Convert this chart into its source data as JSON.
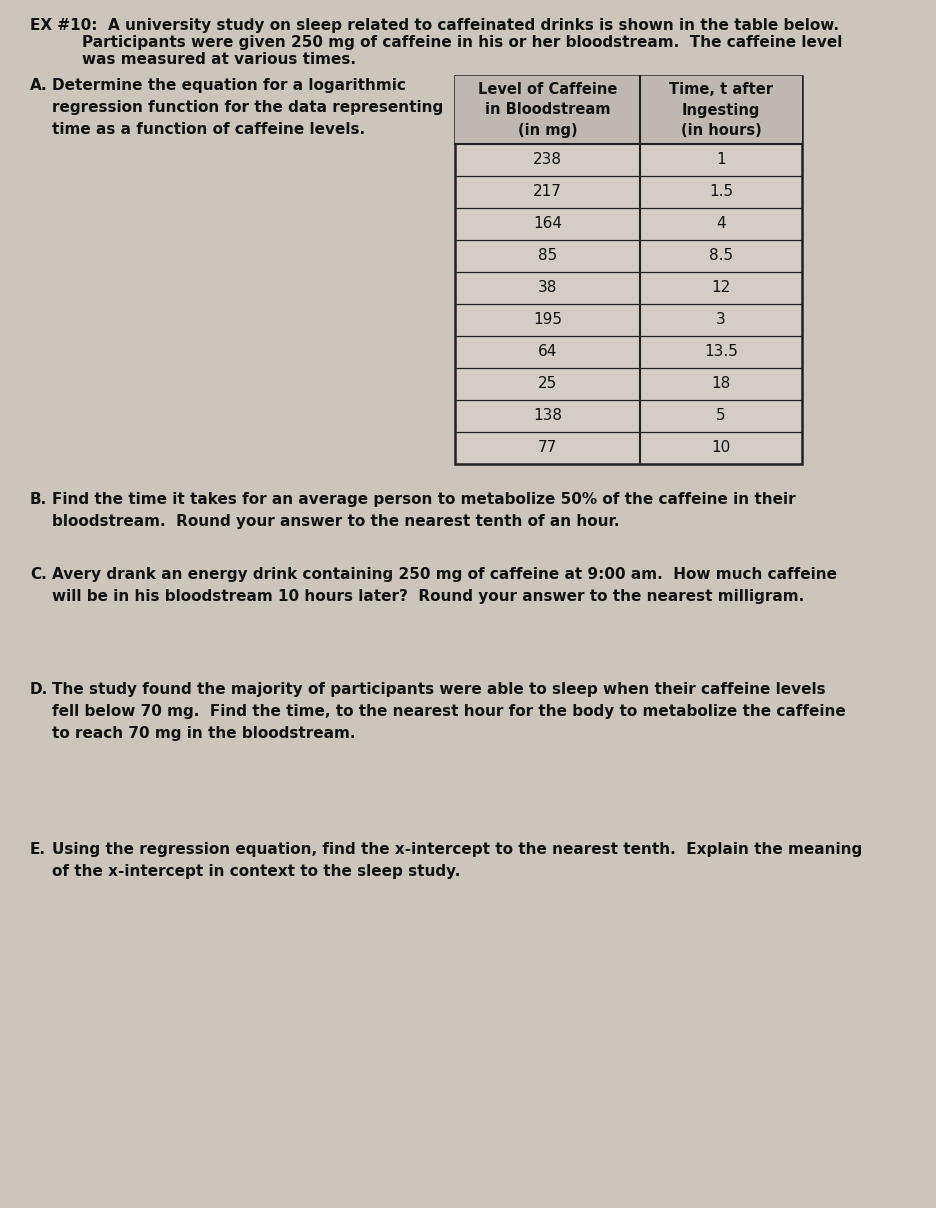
{
  "title_line1": "EX #10:  A university study on sleep related to caffeinated drinks is shown in the table below.",
  "title_line2": "Participants were given 250 mg of caffeine in his or her bloodstream.  The caffeine level",
  "title_line3": "was measured at various times.",
  "part_A_label": "A.",
  "part_A_text": "Determine the equation for a logarithmic\nregression function for the data representing\ntime as a function of caffeine levels.",
  "table_col1_header": "Level of Caffeine\nin Bloodstream\n(in mg)",
  "table_col2_header": "Time, t after\nIngesting\n(in hours)",
  "table_data": [
    [
      "238",
      "1"
    ],
    [
      "217",
      "1.5"
    ],
    [
      "164",
      "4"
    ],
    [
      "85",
      "8.5"
    ],
    [
      "38",
      "12"
    ],
    [
      "195",
      "3"
    ],
    [
      "64",
      "13.5"
    ],
    [
      "25",
      "18"
    ],
    [
      "138",
      "5"
    ],
    [
      "77",
      "10"
    ]
  ],
  "part_B_label": "B.",
  "part_B_text": "Find the time it takes for an average person to metabolize 50% of the caffeine in their\nbloodstream.  Round your answer to the nearest tenth of an hour.",
  "part_C_label": "C.",
  "part_C_text": "Avery drank an energy drink containing 250 mg of caffeine at 9:00 am.  How much caffeine\nwill be in his bloodstream 10 hours later?  Round your answer to the nearest milligram.",
  "part_D_label": "D.",
  "part_D_text": "The study found the majority of participants were able to sleep when their caffeine levels\nfell below 70 mg.  Find the time, to the nearest hour for the body to metabolize the caffeine\nto reach 70 mg in the bloodstream.",
  "part_E_label": "E.",
  "part_E_text": "Using the regression equation, find the x-intercept to the nearest tenth.  Explain the meaning\nof the x-intercept in context to the sleep study.",
  "bg_color": "#ccc5bb",
  "text_color": "#111111",
  "table_border_color": "#222222",
  "table_bg": "#d4cdc5",
  "table_header_bg": "#bfb8b0"
}
